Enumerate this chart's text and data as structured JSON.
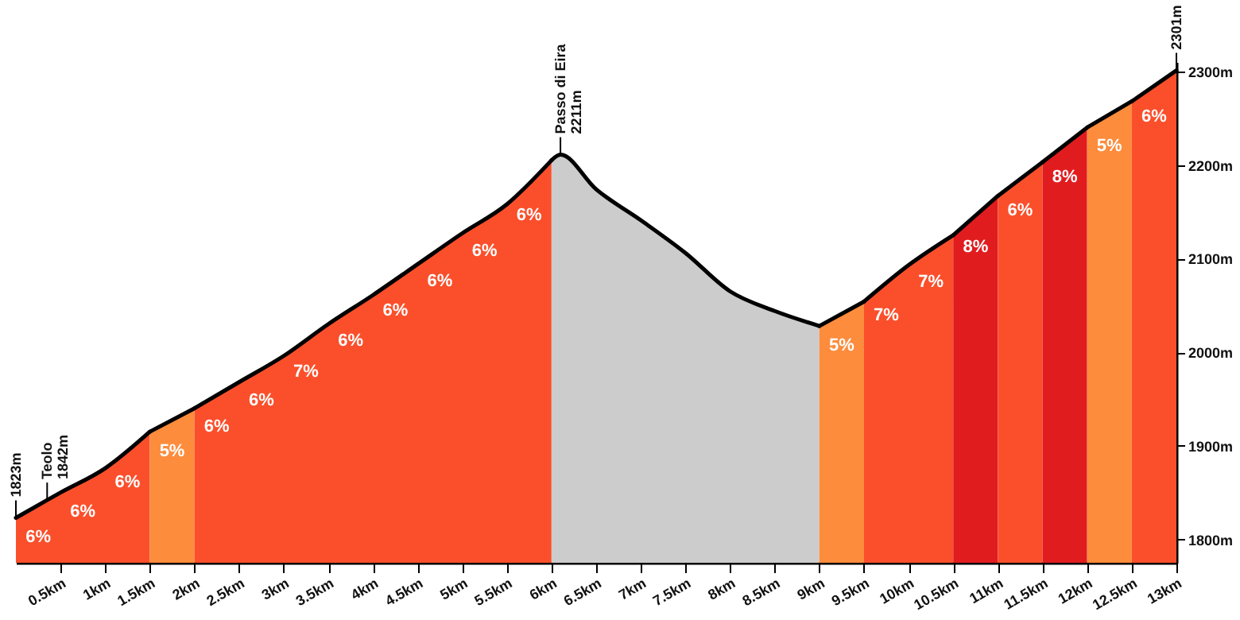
{
  "chart_data": {
    "type": "area",
    "series": [
      {
        "color": "#fb4f2b",
        "x": [
          0,
          0.35,
          0.5,
          1,
          1.5
        ],
        "values": [
          1823,
          1842,
          1850,
          1876,
          1915
        ]
      },
      {
        "color": "#fd8c3c",
        "x": [
          1.5,
          2
        ],
        "values": [
          1915,
          1940
        ]
      },
      {
        "color": "#fb4f2b",
        "x": [
          2,
          2.5,
          3,
          3.5,
          4,
          4.5,
          5,
          5.5,
          6
        ],
        "values": [
          1940,
          1968,
          1996,
          2030,
          2061,
          2094,
          2127,
          2158,
          2205
        ]
      },
      {
        "color": "#cccccc",
        "x": [
          6,
          6.1,
          6.5,
          7,
          7.5,
          8,
          8.5,
          9
        ],
        "values": [
          2205,
          2211,
          2174,
          2141,
          2106,
          2065,
          2044,
          2028
        ]
      },
      {
        "color": "#fd8c3c",
        "x": [
          9,
          9.5
        ],
        "values": [
          2028,
          2054
        ]
      },
      {
        "color": "#fb4f2b",
        "x": [
          9.5,
          10,
          10.5
        ],
        "values": [
          2054,
          2093,
          2125
        ]
      },
      {
        "color": "#e11c1f",
        "x": [
          10.5,
          11
        ],
        "values": [
          2125,
          2167
        ]
      },
      {
        "color": "#fb4f2b",
        "x": [
          11,
          11.5
        ],
        "values": [
          2167,
          2203
        ]
      },
      {
        "color": "#e11c1f",
        "x": [
          11.5,
          12
        ],
        "values": [
          2203,
          2240
        ]
      },
      {
        "color": "#fd8c3c",
        "x": [
          12,
          12.5
        ],
        "values": [
          2240,
          2268
        ]
      },
      {
        "color": "#fb4f2b",
        "x": [
          12.5,
          13
        ],
        "values": [
          2268,
          2301
        ]
      }
    ],
    "xlim": [
      0,
      13
    ],
    "xticks": [
      {
        "value": 0.5,
        "label": "0.5km"
      },
      {
        "value": 1,
        "label": "1km"
      },
      {
        "value": 1.5,
        "label": "1.5km"
      },
      {
        "value": 2,
        "label": "2km"
      },
      {
        "value": 2.5,
        "label": "2.5km"
      },
      {
        "value": 3,
        "label": "3km"
      },
      {
        "value": 3.5,
        "label": "3.5km"
      },
      {
        "value": 4,
        "label": "4km"
      },
      {
        "value": 4.5,
        "label": "4.5km"
      },
      {
        "value": 5,
        "label": "5km"
      },
      {
        "value": 5.5,
        "label": "5.5km"
      },
      {
        "value": 6,
        "label": "6km"
      },
      {
        "value": 6.5,
        "label": "6.5km"
      },
      {
        "value": 7,
        "label": "7km"
      },
      {
        "value": 7.5,
        "label": "7.5km"
      },
      {
        "value": 8,
        "label": "8km"
      },
      {
        "value": 8.5,
        "label": "8.5km"
      },
      {
        "value": 9,
        "label": "9km"
      },
      {
        "value": 9.5,
        "label": "9.5km"
      },
      {
        "value": 10,
        "label": "10km"
      },
      {
        "value": 10.5,
        "label": "10.5km"
      },
      {
        "value": 11,
        "label": "11km"
      },
      {
        "value": 11.5,
        "label": "11.5km"
      },
      {
        "value": 12,
        "label": "12km"
      },
      {
        "value": 12.5,
        "label": "12.5km"
      },
      {
        "value": 13,
        "label": "13km"
      }
    ],
    "ylim": [
      1775,
      2310
    ],
    "yticks": [
      {
        "value": 1800,
        "label": "1800m"
      },
      {
        "value": 1900,
        "label": "1900m"
      },
      {
        "value": 2000,
        "label": "2000m"
      },
      {
        "value": 2100,
        "label": "2100m"
      },
      {
        "value": 2200,
        "label": "2200m"
      },
      {
        "value": 2300,
        "label": "2300m"
      }
    ],
    "grid": false,
    "annotations": [
      {
        "text": "1823m",
        "x": 0,
        "y": 1823
      },
      {
        "text": "Teolo\n1842m",
        "x": 0.35,
        "y": 1842
      },
      {
        "text": "Passo di Eira\n2211m",
        "x": 6.1,
        "y": 2211
      },
      {
        "text": "2301m",
        "x": 13,
        "y": 2301
      },
      {
        "text": "6%",
        "x": 0.25,
        "y": 1836
      },
      {
        "text": "6%",
        "x": 0.75,
        "y": 1863
      },
      {
        "text": "6%",
        "x": 1.25,
        "y": 1895
      },
      {
        "text": "5%",
        "x": 1.75,
        "y": 1928
      },
      {
        "text": "6%",
        "x": 2.25,
        "y": 1954
      },
      {
        "text": "6%",
        "x": 2.75,
        "y": 1982
      },
      {
        "text": "7%",
        "x": 3.25,
        "y": 2013
      },
      {
        "text": "6%",
        "x": 3.75,
        "y": 2046
      },
      {
        "text": "6%",
        "x": 4.25,
        "y": 2078
      },
      {
        "text": "6%",
        "x": 4.75,
        "y": 2110
      },
      {
        "text": "6%",
        "x": 5.25,
        "y": 2142
      },
      {
        "text": "6%",
        "x": 5.75,
        "y": 2180
      },
      {
        "text": "5%",
        "x": 9.25,
        "y": 2041
      },
      {
        "text": "7%",
        "x": 9.75,
        "y": 2073
      },
      {
        "text": "7%",
        "x": 10.25,
        "y": 2109
      },
      {
        "text": "8%",
        "x": 10.75,
        "y": 2146
      },
      {
        "text": "6%",
        "x": 11.25,
        "y": 2185
      },
      {
        "text": "8%",
        "x": 11.75,
        "y": 2221
      },
      {
        "text": "5%",
        "x": 12.25,
        "y": 2254
      },
      {
        "text": "6%",
        "x": 12.75,
        "y": 2285
      }
    ]
  }
}
